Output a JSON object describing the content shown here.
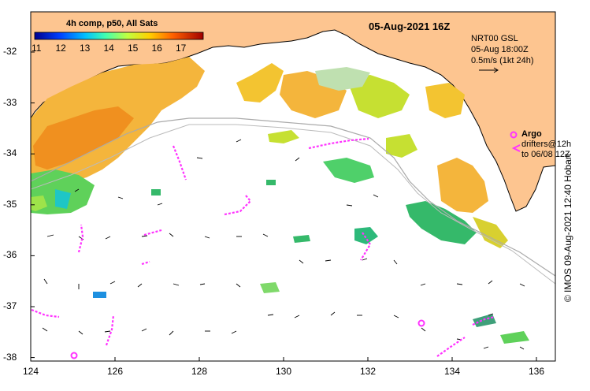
{
  "title": "05-Aug-2021 16Z",
  "colorbar": {
    "title": "4h comp, p50, All Sats",
    "ticks": [
      "11",
      "12",
      "13",
      "14",
      "15",
      "16",
      "17"
    ]
  },
  "info": {
    "line1": "NRT00 GSL",
    "line2": "05-Aug 18:00Z",
    "line3": "0.5m/s (1kt 24h)"
  },
  "legend": {
    "argo": "Argo",
    "drifters1": "drifters@12h",
    "drifters2": "to 06/08 12Z"
  },
  "credit": "© IMOS 09-Aug-2021 12:40 Hobart",
  "axes": {
    "x_ticks": [
      "124",
      "126",
      "128",
      "130",
      "132",
      "134",
      "136"
    ],
    "y_ticks": [
      "-32",
      "-33",
      "-34",
      "-35",
      "-36",
      "-37",
      "-38"
    ]
  },
  "colors": {
    "land": "#fdc590",
    "argo": "#ff33ff",
    "drifter": "#ff33ff"
  }
}
